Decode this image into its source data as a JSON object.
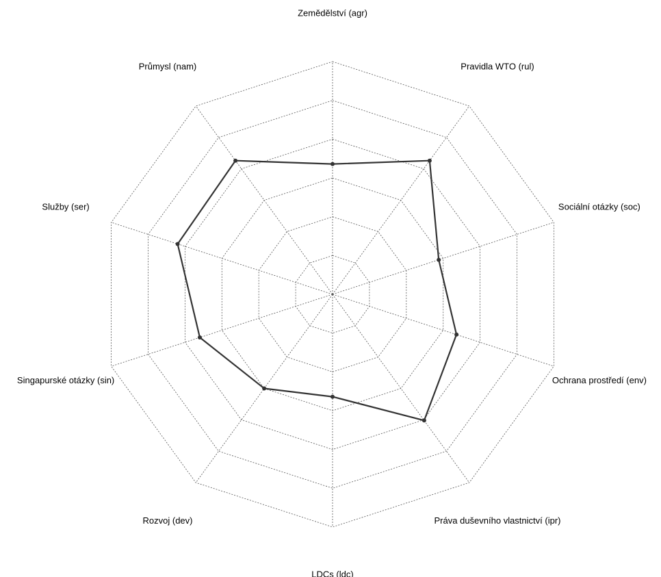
{
  "chart_data": {
    "type": "radar",
    "axes": [
      "Zemědělství (agr)",
      "Pravidla WTO (rul)",
      "Sociální otázky (soc)",
      "Ochrana prostředí (env)",
      "Práva duševního vlastnictví (ipr)",
      "LDCs (ldc)",
      "Rozvoj (dev)",
      "Singapurské otázky (sin)",
      "Služby (ser)",
      "Průmysl (nam)"
    ],
    "rmax": 1,
    "grid_levels": 6,
    "grid": true,
    "series": [
      {
        "values": [
          0.56,
          0.71,
          0.48,
          0.56,
          0.67,
          0.44,
          0.5,
          0.6,
          0.7,
          0.71
        ]
      }
    ],
    "colors": {
      "line": "#333333",
      "grid": "#555555"
    }
  }
}
